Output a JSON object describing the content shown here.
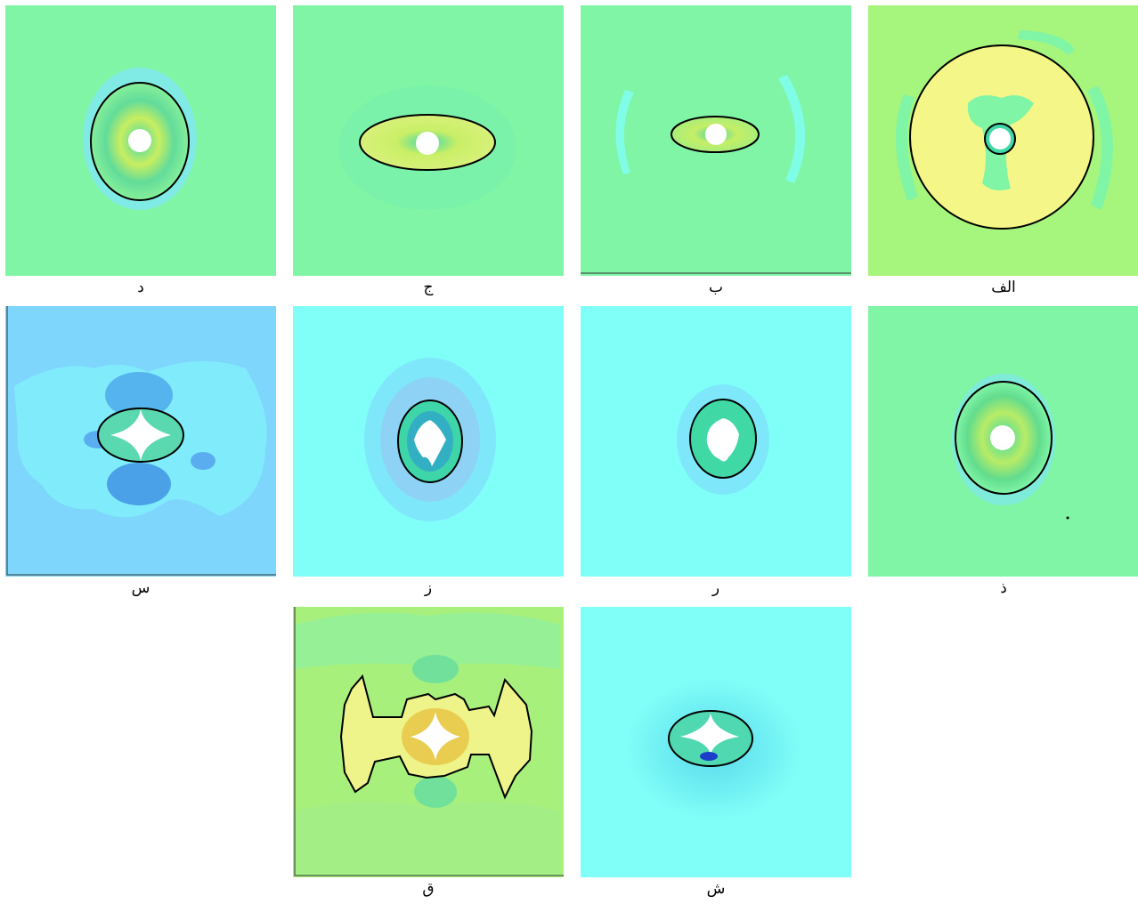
{
  "panels": [
    {
      "id": "dal",
      "label": "د"
    },
    {
      "id": "jim",
      "label": "ج"
    },
    {
      "id": "be",
      "label": "ب"
    },
    {
      "id": "alef",
      "label": "الف"
    },
    {
      "id": "sin",
      "label": "س"
    },
    {
      "id": "ze",
      "label": "ز"
    },
    {
      "id": "re",
      "label": "ر"
    },
    {
      "id": "zal",
      "label": "ذ"
    },
    {
      "id": "qaf",
      "label": "ق"
    },
    {
      "id": "shin",
      "label": "ش"
    }
  ],
  "colors": {
    "field_green": "#80f5a6",
    "field_cyan": "#80fff8",
    "field_blue": "#7ed6fc",
    "field_lime": "#a6f57c",
    "zone_yellow": "#f4f787",
    "boundary": "#000000",
    "hole": "#ffffff"
  }
}
